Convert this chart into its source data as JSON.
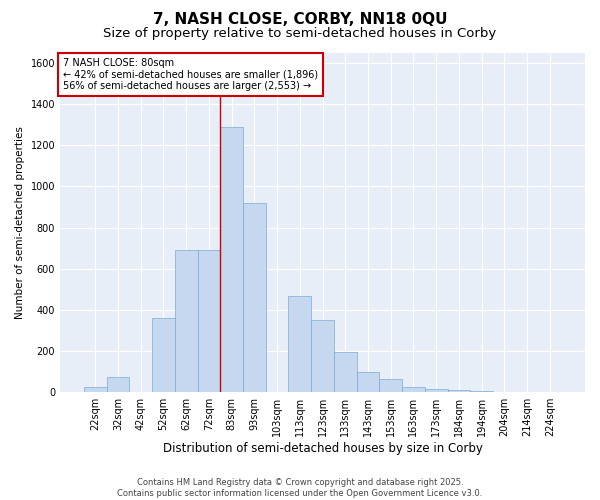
{
  "title": "7, NASH CLOSE, CORBY, NN18 0QU",
  "subtitle": "Size of property relative to semi-detached houses in Corby",
  "xlabel": "Distribution of semi-detached houses by size in Corby",
  "ylabel": "Number of semi-detached properties",
  "property_label": "7 NASH CLOSE: 80sqm",
  "pct_smaller": 42,
  "pct_larger": 56,
  "n_smaller": 1896,
  "n_larger": 2553,
  "categories": [
    "22sqm",
    "32sqm",
    "42sqm",
    "52sqm",
    "62sqm",
    "72sqm",
    "83sqm",
    "93sqm",
    "103sqm",
    "113sqm",
    "123sqm",
    "133sqm",
    "143sqm",
    "153sqm",
    "163sqm",
    "173sqm",
    "184sqm",
    "194sqm",
    "204sqm",
    "214sqm",
    "224sqm"
  ],
  "bar_values": [
    25,
    75,
    0,
    360,
    690,
    690,
    1290,
    920,
    0,
    465,
    350,
    195,
    100,
    65,
    25,
    15,
    10,
    5,
    3,
    2,
    1
  ],
  "bar_color": "#c5d8ef",
  "bar_edge_color": "#7aaad4",
  "vline_color": "#cc0000",
  "vline_x": 5.5,
  "annotation_box_color": "#cc0000",
  "ylim": [
    0,
    1650
  ],
  "yticks": [
    0,
    200,
    400,
    600,
    800,
    1000,
    1200,
    1400,
    1600
  ],
  "background_color": "#e8eef8",
  "grid_color": "#ffffff",
  "footer": "Contains HM Land Registry data © Crown copyright and database right 2025.\nContains public sector information licensed under the Open Government Licence v3.0.",
  "title_fontsize": 11,
  "subtitle_fontsize": 9.5,
  "xlabel_fontsize": 8.5,
  "ylabel_fontsize": 7.5,
  "tick_fontsize": 7,
  "ann_fontsize": 7,
  "footer_fontsize": 6
}
